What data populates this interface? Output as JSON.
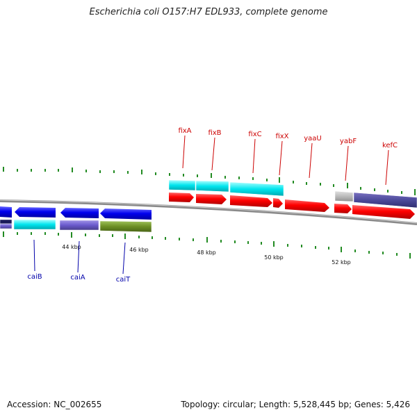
{
  "title": "Escherichia coli O157:H7 EDL933, complete genome",
  "accession": "Accession: NC_002655",
  "summary": "Topology: circular; Length: 5,528,445 bp; Genes: 5,426",
  "ticks": [
    {
      "label": "44 kbp"
    },
    {
      "label": "46 kbp"
    },
    {
      "label": "48 kbp"
    },
    {
      "label": "50 kbp"
    },
    {
      "label": "52 kbp"
    }
  ],
  "top_genes": [
    {
      "name": "fixA"
    },
    {
      "name": "fixB"
    },
    {
      "name": "fixC"
    },
    {
      "name": "fixX"
    },
    {
      "name": "yaaU"
    },
    {
      "name": "yabF"
    },
    {
      "name": "kefC"
    }
  ],
  "bottom_genes": [
    {
      "name": "caiB"
    },
    {
      "name": "caiA"
    },
    {
      "name": "caiT"
    }
  ],
  "colors": {
    "forward_cds": "#ff0000",
    "reverse_cds": "#0000ee",
    "cyan_feature": "#00e5ee",
    "purple_feature": "#6a5acd",
    "olive_feature": "#6b8e23",
    "gray_feature": "#bbbbbb",
    "backbone": "#777777",
    "tick": "#228b22"
  }
}
